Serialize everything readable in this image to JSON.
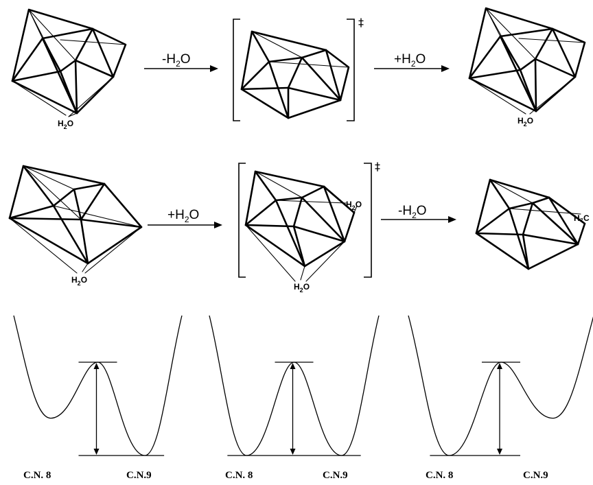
{
  "mechanisms": [
    {
      "id": "dissociative",
      "steps": [
        {
          "reagent_pre": "-H",
          "reagent_sub": "2",
          "reagent_post": "O"
        },
        {
          "reagent_pre": "+H",
          "reagent_sub": "2",
          "reagent_post": "O"
        }
      ],
      "water_pre": "H",
      "water_sub": "2",
      "water_post": "O",
      "transition_mark": "‡"
    },
    {
      "id": "associative",
      "steps": [
        {
          "reagent_pre": "+H",
          "reagent_sub": "2",
          "reagent_post": "O"
        },
        {
          "reagent_pre": "-H",
          "reagent_sub": "2",
          "reagent_post": "O"
        }
      ],
      "water_pre": "H",
      "water_sub": "2",
      "water_post": "O",
      "water_edge": "H₂C",
      "transition_mark": "‡"
    }
  ],
  "energy_profiles": [
    {
      "left_label": "C.N. 8",
      "right_label": "C.N.9",
      "left_min_depth": 0.6,
      "right_min_depth": 1.0
    },
    {
      "left_label": "C.N. 8",
      "right_label": "C.N.9",
      "left_min_depth": 1.0,
      "right_min_depth": 1.0
    },
    {
      "left_label": "C.N. 8",
      "right_label": "C.N.9",
      "left_min_depth": 1.0,
      "right_min_depth": 0.6
    }
  ]
}
